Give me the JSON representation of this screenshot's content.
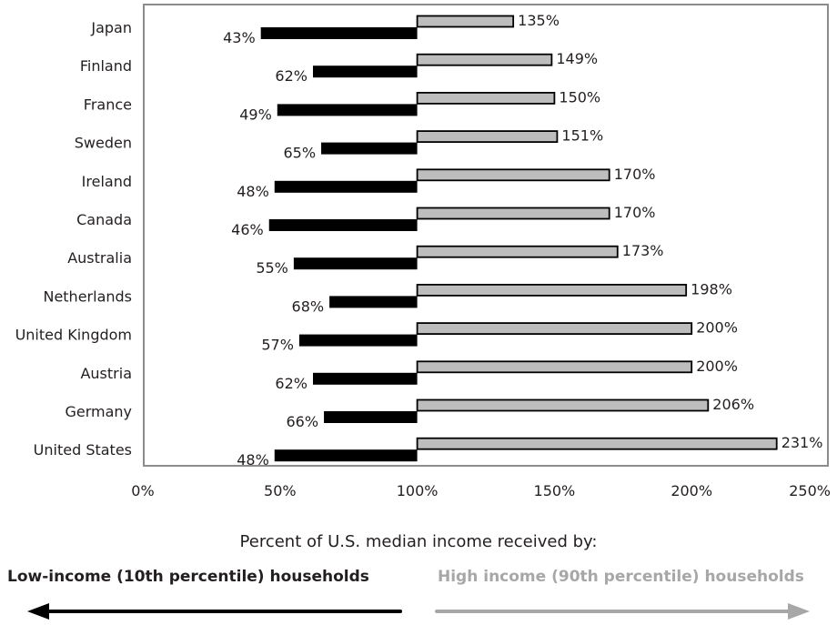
{
  "chart_data": {
    "type": "bar",
    "orientation": "horizontal",
    "baseline": 100,
    "categories": [
      "Japan",
      "Finland",
      "France",
      "Sweden",
      "Ireland",
      "Canada",
      "Australia",
      "Netherlands",
      "United Kingdom",
      "Austria",
      "Germany",
      "United States"
    ],
    "series": [
      {
        "name": "Low-income (10th percentile) households",
        "values": [
          43,
          62,
          49,
          65,
          48,
          46,
          55,
          68,
          57,
          62,
          66,
          48
        ]
      },
      {
        "name": "High income (90th percentile) households",
        "values": [
          135,
          149,
          150,
          151,
          170,
          170,
          173,
          198,
          200,
          200,
          206,
          231
        ]
      }
    ],
    "value_labels": {
      "low": [
        "43%",
        "62%",
        "49%",
        "65%",
        "48%",
        "46%",
        "55%",
        "68%",
        "57%",
        "62%",
        "66%",
        "48%"
      ],
      "high": [
        "135%",
        "149%",
        "150%",
        "151%",
        "170%",
        "170%",
        "173%",
        "198%",
        "200%",
        "200%",
        "206%",
        "231%"
      ]
    },
    "xlim": [
      0,
      250
    ],
    "x_ticks": [
      0,
      50,
      100,
      150,
      200,
      250
    ],
    "x_tick_labels": [
      "0%",
      "50%",
      "100%",
      "150%",
      "200%",
      "250%"
    ],
    "xlabel": "Percent of U.S. median income received by:",
    "grid": false,
    "colors": {
      "low": "#000000",
      "high": "#bdbdbd",
      "high_text": "#a7a7a7",
      "frame": "#8c8c8c"
    }
  },
  "legend": {
    "low_label": "Low-income (10th percentile) households",
    "high_label": "High income (90th percentile) households"
  }
}
